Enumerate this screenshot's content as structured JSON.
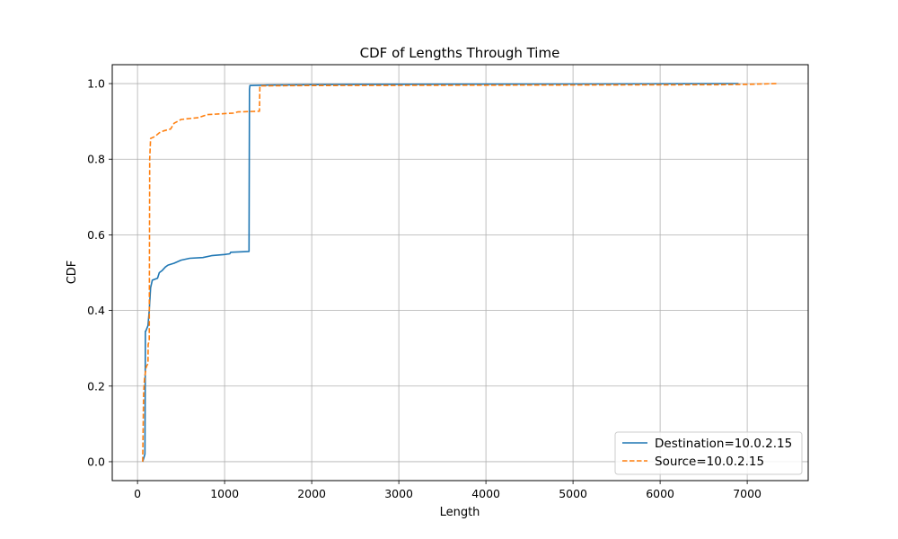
{
  "chart_data": {
    "type": "line",
    "title": "CDF of Lengths Through Time",
    "xlabel": "Length",
    "ylabel": "CDF",
    "xlim": [
      -290,
      7700
    ],
    "ylim": [
      -0.05,
      1.05
    ],
    "xticks": [
      0,
      1000,
      2000,
      3000,
      4000,
      5000,
      6000,
      7000
    ],
    "yticks": [
      0.0,
      0.2,
      0.4,
      0.6,
      0.8,
      1.0
    ],
    "grid": true,
    "legend_position": "lower-right",
    "series": [
      {
        "name": "Destination=10.0.2.15",
        "color": "#1f77b4",
        "style": "solid",
        "points": [
          [
            60,
            0.0
          ],
          [
            85,
            0.02
          ],
          [
            88,
            0.2
          ],
          [
            90,
            0.345
          ],
          [
            95,
            0.345
          ],
          [
            120,
            0.36
          ],
          [
            135,
            0.4
          ],
          [
            150,
            0.46
          ],
          [
            170,
            0.48
          ],
          [
            230,
            0.485
          ],
          [
            250,
            0.5
          ],
          [
            280,
            0.505
          ],
          [
            320,
            0.515
          ],
          [
            350,
            0.52
          ],
          [
            420,
            0.525
          ],
          [
            500,
            0.533
          ],
          [
            600,
            0.538
          ],
          [
            750,
            0.54
          ],
          [
            850,
            0.545
          ],
          [
            1000,
            0.548
          ],
          [
            1060,
            0.55
          ],
          [
            1070,
            0.554
          ],
          [
            1280,
            0.556
          ],
          [
            1285,
            0.985
          ],
          [
            1290,
            0.995
          ],
          [
            1500,
            0.996
          ],
          [
            2500,
            0.998
          ],
          [
            5000,
            0.999
          ],
          [
            6900,
            1.0
          ]
        ]
      },
      {
        "name": "Source=10.0.2.15",
        "color": "#ff7f0e",
        "style": "dashed",
        "points": [
          [
            60,
            0.0
          ],
          [
            70,
            0.18
          ],
          [
            80,
            0.22
          ],
          [
            100,
            0.25
          ],
          [
            120,
            0.26
          ],
          [
            122,
            0.31
          ],
          [
            135,
            0.32
          ],
          [
            140,
            0.8
          ],
          [
            150,
            0.855
          ],
          [
            200,
            0.86
          ],
          [
            250,
            0.87
          ],
          [
            300,
            0.875
          ],
          [
            380,
            0.88
          ],
          [
            420,
            0.895
          ],
          [
            500,
            0.905
          ],
          [
            700,
            0.91
          ],
          [
            800,
            0.918
          ],
          [
            1100,
            0.922
          ],
          [
            1150,
            0.925
          ],
          [
            1400,
            0.927
          ],
          [
            1405,
            0.994
          ],
          [
            2000,
            0.995
          ],
          [
            6700,
            0.997
          ],
          [
            7000,
            0.998
          ],
          [
            7350,
            1.0
          ]
        ]
      }
    ]
  }
}
